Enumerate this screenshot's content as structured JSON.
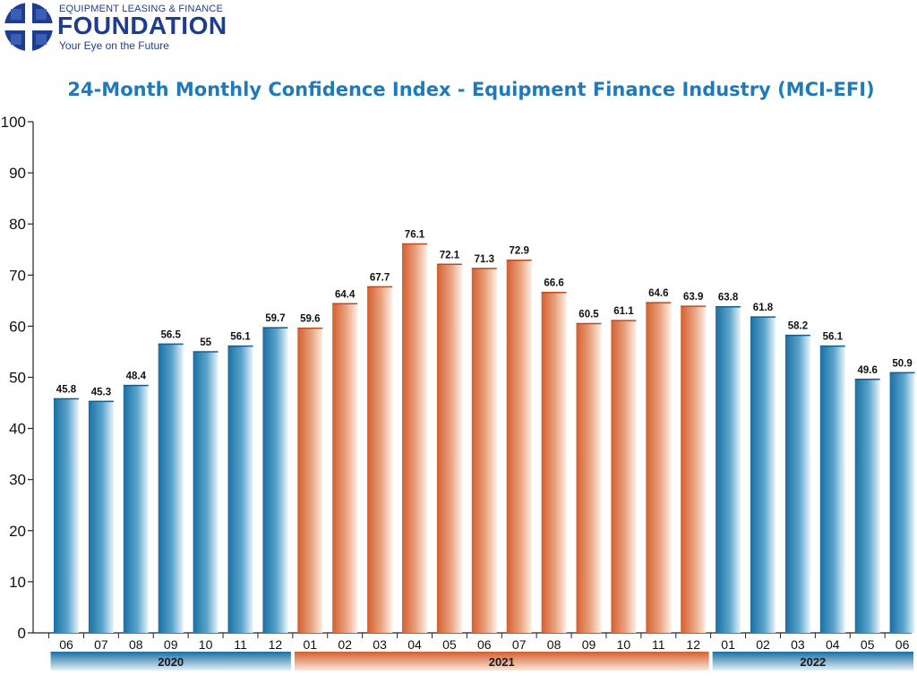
{
  "brand": {
    "top_line": "EQUIPMENT LEASING & FINANCE",
    "name": "FOUNDATION",
    "tagline": "Your Eye on the Future",
    "logo_icon": "globe-grid-icon"
  },
  "colors": {
    "blue": "#1a75a8",
    "orange": "#d9683a",
    "title": "#1e7ab8",
    "brand": "#1f3d8f"
  },
  "chart_data": {
    "type": "bar",
    "title": "24-Month Monthly Confidence Index - Equipment Finance Industry (MCI-EFI)",
    "xlabel": "",
    "ylabel": "",
    "ylim": [
      0,
      100
    ],
    "yticks": [
      0,
      10,
      20,
      30,
      40,
      50,
      60,
      70,
      80,
      90,
      100
    ],
    "grid": false,
    "legend": "none",
    "categories": [
      "06",
      "07",
      "08",
      "09",
      "10",
      "11",
      "12",
      "01",
      "02",
      "03",
      "04",
      "05",
      "06",
      "07",
      "08",
      "09",
      "10",
      "11",
      "12",
      "01",
      "02",
      "03",
      "04",
      "05",
      "06"
    ],
    "values": [
      45.8,
      45.3,
      48.4,
      56.5,
      55,
      56.1,
      59.7,
      59.6,
      64.4,
      67.7,
      76.1,
      72.1,
      71.3,
      72.9,
      66.6,
      60.5,
      61.1,
      64.6,
      63.9,
      63.8,
      61.8,
      58.2,
      56.1,
      49.6,
      50.9
    ],
    "value_labels": [
      "45.8",
      "45.3",
      "48.4",
      "56.5",
      "55",
      "56.1",
      "59.7",
      "59.6",
      "64.4",
      "67.7",
      "76.1",
      "72.1",
      "71.3",
      "72.9",
      "66.6",
      "60.5",
      "61.1",
      "64.6",
      "63.9",
      "63.8",
      "61.8",
      "58.2",
      "56.1",
      "49.6",
      "50.9"
    ],
    "years": [
      {
        "label": "2020",
        "start": 0,
        "end": 6,
        "color": "blue"
      },
      {
        "label": "2021",
        "start": 7,
        "end": 18,
        "color": "orange"
      },
      {
        "label": "2022",
        "start": 19,
        "end": 24,
        "color": "blue"
      }
    ]
  }
}
